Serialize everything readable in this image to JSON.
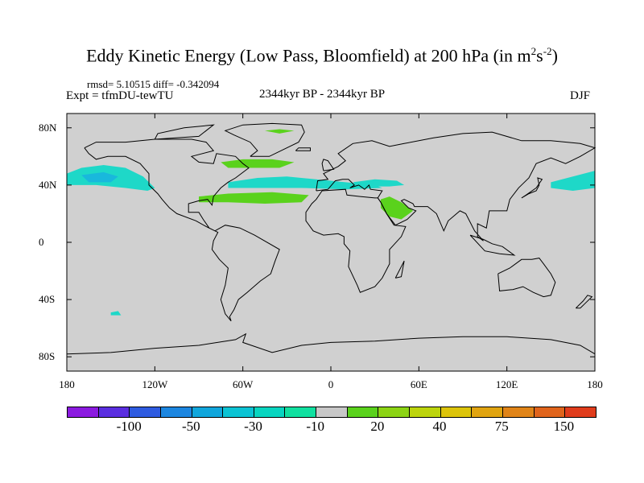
{
  "title": {
    "main": "Eddy Kinetic Energy (Low Pass, Bloomfield) at 200 hPa (in m",
    "sup1": "2",
    "mid": "s",
    "sup2": "-2",
    "end": ")"
  },
  "stats": "rmsd= 5.10515 diff= -0.342094",
  "expt": "Expt = tfmDU-tewTU",
  "period": "2344kyr BP - 2344kyr BP",
  "season": "DJF",
  "map": {
    "land_color": "#d0d0d0",
    "coast_color": "#000000",
    "lat_labels": [
      {
        "name": "lat-80n",
        "label": "80N"
      },
      {
        "name": "lat-40n",
        "label": "40N"
      },
      {
        "name": "lat-0",
        "label": "0"
      },
      {
        "name": "lat-40s",
        "label": "40S"
      },
      {
        "name": "lat-80s",
        "label": "80S"
      }
    ],
    "lon_labels": [
      {
        "name": "lon-180w",
        "label": "180"
      },
      {
        "name": "lon-120w",
        "label": "120W"
      },
      {
        "name": "lon-60w",
        "label": "60W"
      },
      {
        "name": "lon-0",
        "label": "0"
      },
      {
        "name": "lon-60e",
        "label": "60E"
      },
      {
        "name": "lon-120e",
        "label": "120E"
      },
      {
        "name": "lon-180e",
        "label": "180"
      }
    ]
  },
  "colorbar": {
    "colors": [
      "#8b1ae0",
      "#5a2ee0",
      "#2e5be0",
      "#1c86e0",
      "#10a6dc",
      "#0bc3d4",
      "#08d5c0",
      "#10e0a0",
      "#c8c8c8",
      "#5ad21c",
      "#8cd414",
      "#bcd40c",
      "#dcc40a",
      "#e0a410",
      "#e08418",
      "#e0641c",
      "#e03c1c"
    ],
    "labels": [
      {
        "name": "cb-label-minus100",
        "text": "-100"
      },
      {
        "name": "cb-label-minus50",
        "text": "-50"
      },
      {
        "name": "cb-label-minus30",
        "text": "-30"
      },
      {
        "name": "cb-label-minus10",
        "text": "-10"
      },
      {
        "name": "cb-label-20",
        "text": "20"
      },
      {
        "name": "cb-label-40",
        "text": "40"
      },
      {
        "name": "cb-label-75",
        "text": "75"
      },
      {
        "name": "cb-label-150",
        "text": "150"
      }
    ]
  },
  "anomaly_regions": [
    {
      "name": "anomaly-north-pacific",
      "sign": "negative",
      "color": "#1ed8c8"
    },
    {
      "name": "anomaly-north-pacific-core",
      "sign": "negative",
      "color": "#19b8dc"
    },
    {
      "name": "anomaly-north-atlantic",
      "sign": "negative",
      "color": "#1ed8c8"
    },
    {
      "name": "anomaly-eurasia",
      "sign": "negative",
      "color": "#1ed8c8"
    },
    {
      "name": "anomaly-west-pacific",
      "sign": "negative",
      "color": "#1ed8c8"
    },
    {
      "name": "anomaly-arctic",
      "sign": "positive",
      "color": "#5ad21c"
    },
    {
      "name": "anomaly-north-atlantic-positive",
      "sign": "positive",
      "color": "#5ad21c"
    },
    {
      "name": "anomaly-subtropical-atlantic",
      "sign": "positive",
      "color": "#5ad21c"
    },
    {
      "name": "anomaly-arabia",
      "sign": "positive",
      "color": "#5ad21c"
    },
    {
      "name": "anomaly-south-pacific",
      "sign": "negative",
      "color": "#1ed8c8"
    }
  ]
}
